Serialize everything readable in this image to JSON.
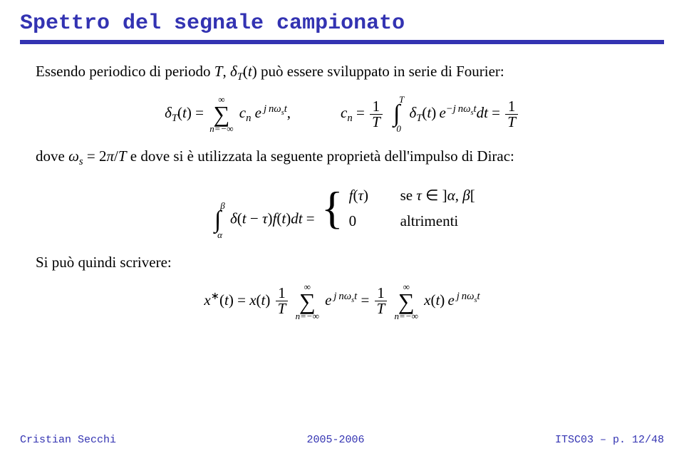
{
  "colors": {
    "accent": "#3333b2",
    "bg": "#ffffff",
    "text": "#000000"
  },
  "title": "Spettro del segnale campionato",
  "intro_pre": "Essendo periodico di periodo ",
  "intro_mid": ", ",
  "intro_post": " può essere sviluppato in serie di Fourier:",
  "dove_pre": "dove ",
  "dove_mid": " e dove si è utilizzata la seguente proprietà dell'impulso di Dirac:",
  "case_se": "se ",
  "case_alt": "altrimenti",
  "sipuo": "Si può quindi scrivere:",
  "footer": {
    "left": "Cristian Secchi",
    "center": "2005-2006",
    "right": "ITSC03 – p. 12/48"
  }
}
